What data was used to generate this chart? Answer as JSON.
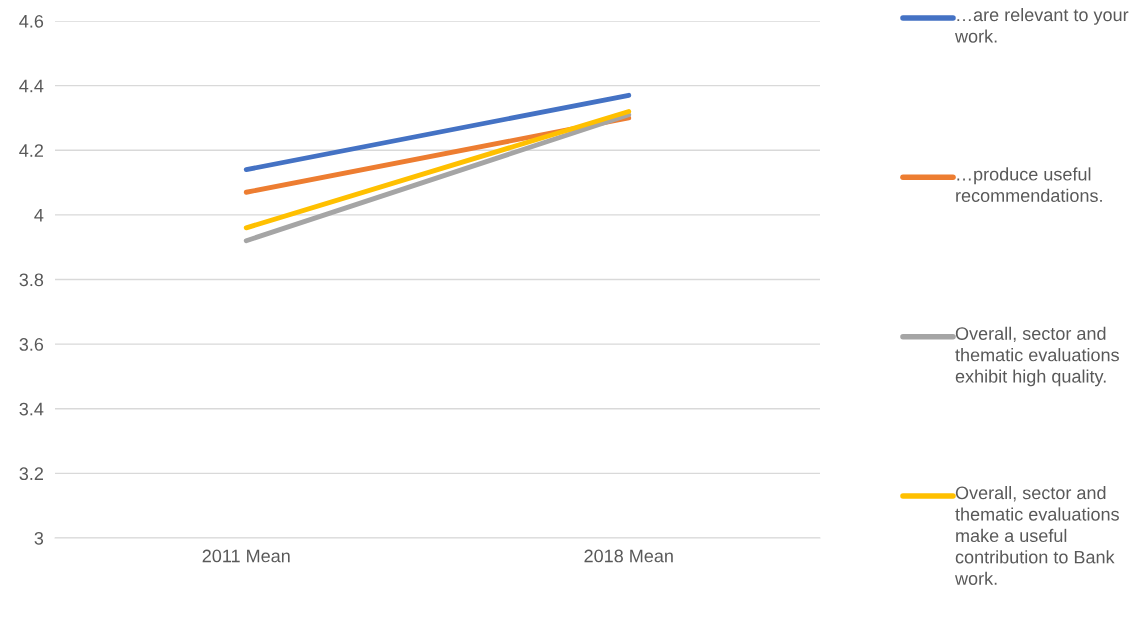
{
  "chart_data": {
    "type": "line",
    "categories": [
      "2011 Mean",
      "2018 Mean"
    ],
    "series": [
      {
        "name": "…are relevant to your work.",
        "color": "#4472c4",
        "values": [
          4.14,
          4.37
        ]
      },
      {
        "name": "…produce useful recommendations.",
        "color": "#ed7d31",
        "values": [
          4.07,
          4.3
        ]
      },
      {
        "name": "Overall, sector and thematic evaluations exhibit high quality.",
        "color": "#a5a5a5",
        "values": [
          3.92,
          4.31
        ]
      },
      {
        "name": "Overall, sector and thematic evaluations make a useful contribution to Bank work.",
        "color": "#ffc000",
        "values": [
          3.96,
          4.32
        ]
      }
    ],
    "ylim": [
      3,
      4.6
    ],
    "yticks": [
      3,
      3.2,
      3.4,
      3.6,
      3.8,
      4,
      4.2,
      4.4,
      4.6
    ],
    "grid": "y",
    "legend": "right",
    "marker": "none",
    "line_style": "solid"
  }
}
